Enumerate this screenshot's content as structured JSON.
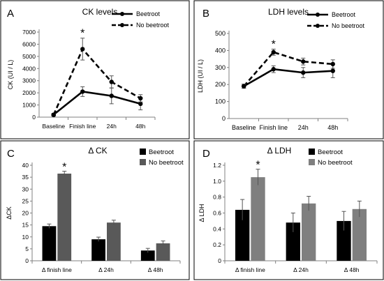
{
  "chart_data": [
    {
      "panel_label": "A",
      "type": "line",
      "title": "CK levels",
      "ylabel": "CK  (UI / L)",
      "xlabel": "",
      "categories": [
        "Baseline",
        "Finish line",
        "24h",
        "48h"
      ],
      "ylim": [
        0,
        7000
      ],
      "yticks": [
        0,
        1000,
        2000,
        3000,
        4000,
        5000,
        6000,
        7000
      ],
      "series": [
        {
          "name": "Beetroot",
          "style": "solid",
          "values": [
            200,
            2100,
            1750,
            1100
          ],
          "errors": [
            100,
            400,
            650,
            500
          ]
        },
        {
          "name": "No beetroot",
          "style": "dashed",
          "values": [
            180,
            5600,
            2900,
            1550
          ],
          "errors": [
            80,
            900,
            500,
            300
          ]
        }
      ],
      "annotations": [
        {
          "text": "*",
          "category": "Finish line"
        }
      ],
      "legend_position": "top-right",
      "grid": false
    },
    {
      "panel_label": "B",
      "type": "line",
      "title": "LDH levels",
      "ylabel": "LDH  (UI / L)",
      "xlabel": "",
      "categories": [
        "Baseline",
        "Finish line",
        "24h",
        "48h"
      ],
      "ylim": [
        0,
        500
      ],
      "yticks": [
        0,
        100,
        200,
        300,
        400,
        500
      ],
      "series": [
        {
          "name": "Beetroot",
          "style": "solid",
          "values": [
            190,
            290,
            270,
            280
          ],
          "errors": [
            12,
            20,
            30,
            40
          ]
        },
        {
          "name": "No beetroot",
          "style": "dashed",
          "values": [
            190,
            390,
            335,
            320
          ],
          "errors": [
            12,
            18,
            20,
            25
          ]
        }
      ],
      "annotations": [
        {
          "text": "*",
          "category": "Finish line"
        }
      ],
      "legend_position": "top-right",
      "grid": false
    },
    {
      "panel_label": "C",
      "type": "bar",
      "title": "Δ CK",
      "ylabel": "ΔCK",
      "xlabel": "",
      "categories": [
        "Δ finish line",
        "Δ 24h",
        "Δ 48h"
      ],
      "ylim": [
        0,
        40
      ],
      "yticks": [
        0,
        5,
        10,
        15,
        20,
        25,
        30,
        35,
        40
      ],
      "series": [
        {
          "name": "Beetroot",
          "color": "#000000",
          "values": [
            14.5,
            9.0,
            4.3
          ],
          "errors": [
            0.9,
            0.9,
            0.9
          ]
        },
        {
          "name": "No beetroot",
          "color": "#595959",
          "values": [
            36.5,
            16.0,
            7.3
          ],
          "errors": [
            1.0,
            1.0,
            1.0
          ]
        }
      ],
      "annotations": [
        {
          "text": "*",
          "category": "Δ finish line",
          "series": "No beetroot"
        }
      ],
      "legend_position": "top-right",
      "grid": false
    },
    {
      "panel_label": "D",
      "type": "bar",
      "title": "Δ LDH",
      "ylabel": "Δ LDH",
      "xlabel": "",
      "categories": [
        "Δ finish line",
        "Δ 24h",
        "Δ 48h"
      ],
      "ylim": [
        0,
        1.2
      ],
      "yticks": [
        0,
        0.2,
        0.4,
        0.6,
        0.8,
        1.0,
        1.2
      ],
      "ytick_labels": [
        "0",
        "0.2",
        "0.4",
        "0.6",
        "0.8",
        "1.0",
        "1.2"
      ],
      "series": [
        {
          "name": "Beetroot",
          "color": "#000000",
          "values": [
            0.64,
            0.48,
            0.5
          ],
          "errors": [
            0.13,
            0.12,
            0.12
          ]
        },
        {
          "name": "No beetroot",
          "color": "#7f7f7f",
          "values": [
            1.05,
            0.72,
            0.65
          ],
          "errors": [
            0.1,
            0.09,
            0.1
          ]
        }
      ],
      "annotations": [
        {
          "text": "*",
          "category": "Δ finish line",
          "series": "No beetroot"
        }
      ],
      "legend_position": "top-right",
      "grid": false
    }
  ]
}
